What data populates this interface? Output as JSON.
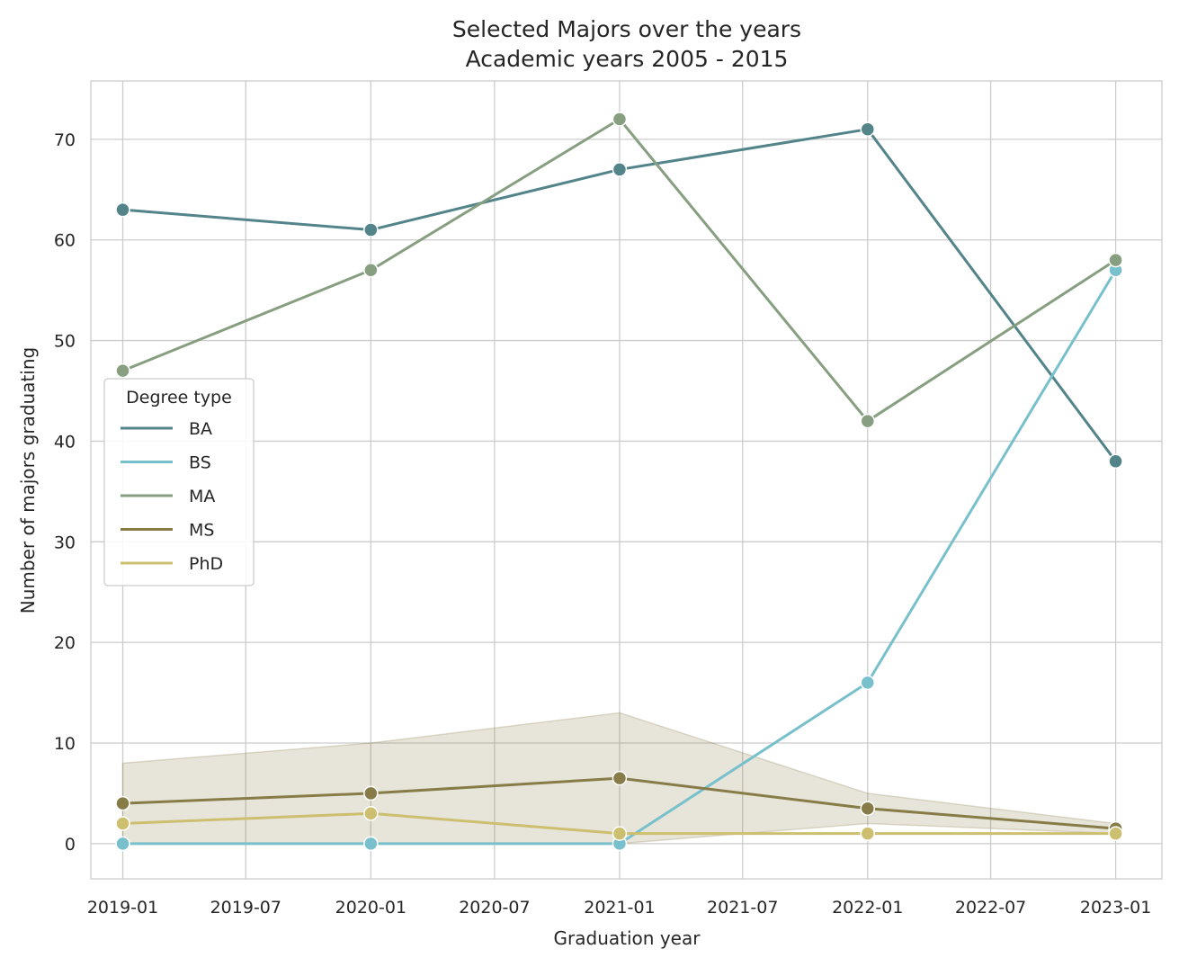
{
  "chart_data": {
    "type": "line",
    "title": "Selected Majors over the years",
    "subtitle": "Academic years 2005 - 2015",
    "xlabel": "Graduation year",
    "ylabel": "Number of majors graduating",
    "x_range": [
      "2018-11-15",
      "2023-03-10"
    ],
    "ylim": [
      -3.5,
      75.8
    ],
    "x_ticks": [
      "2019-01",
      "2019-07",
      "2020-01",
      "2020-07",
      "2021-01",
      "2021-07",
      "2022-01",
      "2022-07",
      "2023-01"
    ],
    "y_ticks": [
      0,
      10,
      20,
      30,
      40,
      50,
      60,
      70
    ],
    "grid": true,
    "legend": {
      "title": "Degree type",
      "placement": "center-left"
    },
    "x": [
      "2019-01",
      "2020-01",
      "2021-01",
      "2022-01",
      "2023-01"
    ],
    "series": [
      {
        "name": "BA",
        "color": "#52848a",
        "values": [
          63,
          61,
          67,
          71,
          38
        ]
      },
      {
        "name": "BS",
        "color": "#78c0cc",
        "values": [
          0,
          0,
          0,
          16,
          57
        ]
      },
      {
        "name": "MA",
        "color": "#879f80",
        "values": [
          47,
          57,
          72,
          42,
          58
        ]
      },
      {
        "name": "MS",
        "color": "#877b48",
        "values": [
          4,
          5,
          6.5,
          3.5,
          1.5
        ],
        "band_lower": [
          0,
          0,
          0,
          2,
          1
        ],
        "band_upper": [
          8,
          10,
          13,
          5,
          2
        ]
      },
      {
        "name": "PhD",
        "color": "#cdbf70",
        "values": [
          2,
          3,
          1,
          1,
          1
        ]
      }
    ]
  }
}
